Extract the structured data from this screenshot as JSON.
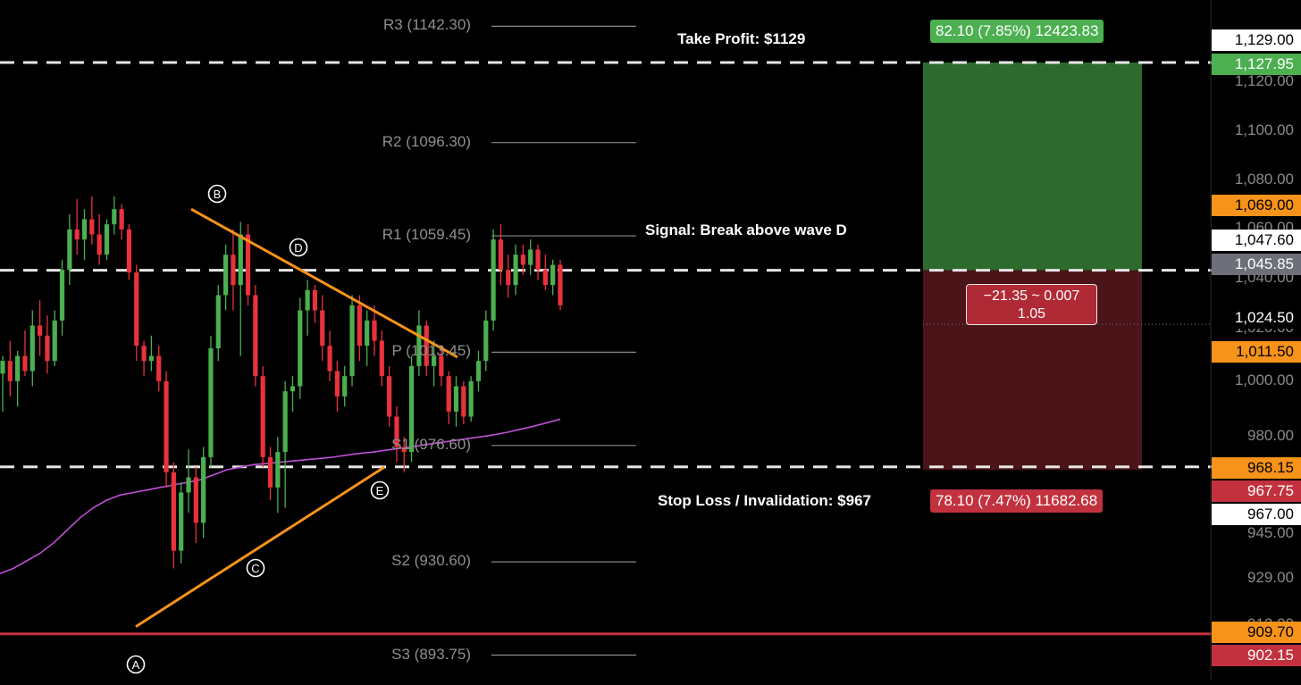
{
  "annotations": {
    "take_profit": "Take Profit: $1129",
    "signal": "Signal: Break above wave D",
    "stop_loss": "Stop Loss / Invalidation: $967"
  },
  "position_tool": {
    "profit_label": "82.10 (7.85%) 12423.83",
    "loss_label": "78.10 (7.47%) 11682.68",
    "measure_line1": "−21.35 ~ 0.007",
    "measure_line2": "1.05",
    "profit_color": "#2d6a2d",
    "loss_color": "#4a1418",
    "profit_pill_color": "#4caf50",
    "loss_pill_color": "#c1323e"
  },
  "pivot_points": [
    {
      "label": "R3 (1142.30)",
      "value": 1142.3
    },
    {
      "label": "R2 (1096.30)",
      "value": 1096.3
    },
    {
      "label": "R1 (1059.45)",
      "value": 1059.45
    },
    {
      "label": "P (1013.45)",
      "value": 1013.45
    },
    {
      "label": "S1 (976.60)",
      "value": 976.6
    },
    {
      "label": "S2 (930.60)",
      "value": 930.6
    },
    {
      "label": "S3 (893.75)",
      "value": 893.75
    }
  ],
  "wave_labels": [
    "A",
    "B",
    "C",
    "D",
    "E"
  ],
  "price_axis": {
    "ticks": [
      "1,120.00",
      "1,100.00",
      "1,080.00",
      "1,060.00",
      "1,040.00",
      "1,020.00",
      "1,000.00",
      "980.00",
      "945.00",
      "929.00",
      "912.00"
    ],
    "badges": [
      {
        "text": "1,129.00",
        "bg": "#ffffff",
        "fg": "#000000"
      },
      {
        "text": "1,127.95",
        "bg": "#4caf50",
        "fg": "#ffffff"
      },
      {
        "text": "1,069.00",
        "bg": "#f7931a",
        "fg": "#000000"
      },
      {
        "text": "1,047.60",
        "bg": "#ffffff",
        "fg": "#000000"
      },
      {
        "text": "1,045.85",
        "bg": "#6e7079",
        "fg": "#ffffff"
      },
      {
        "text": "1,024.50",
        "bg": "#000000",
        "fg": "#ffffff"
      },
      {
        "text": "1,011.50",
        "bg": "#f7931a",
        "fg": "#000000"
      },
      {
        "text": "968.15",
        "bg": "#f7931a",
        "fg": "#000000"
      },
      {
        "text": "967.75",
        "bg": "#c1323e",
        "fg": "#ffffff"
      },
      {
        "text": "967.00",
        "bg": "#ffffff",
        "fg": "#000000"
      },
      {
        "text": "909.70",
        "bg": "#f7931a",
        "fg": "#000000"
      },
      {
        "text": "902.15",
        "bg": "#c1323e",
        "fg": "#ffffff"
      }
    ]
  },
  "colors": {
    "up": "#4caf50",
    "down": "#e8323c",
    "triangle": "#f7931a",
    "moving_average": "#c04fd6",
    "support_line": "#c1323e"
  },
  "chart_data": {
    "type": "candlestick",
    "title": "",
    "xlabel": "",
    "ylabel": "",
    "ylim": [
      892,
      1142
    ],
    "grid": false,
    "horizontal_levels": {
      "take_profit": 1129.0,
      "entry": 1045.85,
      "stop_loss": 967.0,
      "support": 902.15
    },
    "candles": [
      {
        "o": 1005,
        "h": 1012,
        "l": 990,
        "c": 1010
      },
      {
        "o": 1010,
        "h": 1018,
        "l": 996,
        "c": 1002
      },
      {
        "o": 1002,
        "h": 1014,
        "l": 992,
        "c": 1012
      },
      {
        "o": 1012,
        "h": 1022,
        "l": 1004,
        "c": 1006
      },
      {
        "o": 1006,
        "h": 1030,
        "l": 1000,
        "c": 1024
      },
      {
        "o": 1024,
        "h": 1034,
        "l": 1012,
        "c": 1020
      },
      {
        "o": 1020,
        "h": 1028,
        "l": 1005,
        "c": 1010
      },
      {
        "o": 1010,
        "h": 1030,
        "l": 1008,
        "c": 1026
      },
      {
        "o": 1026,
        "h": 1050,
        "l": 1020,
        "c": 1046
      },
      {
        "o": 1046,
        "h": 1068,
        "l": 1040,
        "c": 1062
      },
      {
        "o": 1062,
        "h": 1074,
        "l": 1052,
        "c": 1058
      },
      {
        "o": 1058,
        "h": 1070,
        "l": 1050,
        "c": 1066
      },
      {
        "o": 1066,
        "h": 1075,
        "l": 1056,
        "c": 1060
      },
      {
        "o": 1060,
        "h": 1068,
        "l": 1048,
        "c": 1052
      },
      {
        "o": 1052,
        "h": 1066,
        "l": 1050,
        "c": 1064
      },
      {
        "o": 1064,
        "h": 1075,
        "l": 1060,
        "c": 1070
      },
      {
        "o": 1070,
        "h": 1072,
        "l": 1058,
        "c": 1062
      },
      {
        "o": 1062,
        "h": 1064,
        "l": 1042,
        "c": 1045
      },
      {
        "o": 1045,
        "h": 1048,
        "l": 1010,
        "c": 1016
      },
      {
        "o": 1016,
        "h": 1018,
        "l": 1004,
        "c": 1010
      },
      {
        "o": 1010,
        "h": 1020,
        "l": 1006,
        "c": 1012
      },
      {
        "o": 1012,
        "h": 1016,
        "l": 998,
        "c": 1002
      },
      {
        "o": 1002,
        "h": 1006,
        "l": 960,
        "c": 966
      },
      {
        "o": 966,
        "h": 970,
        "l": 928,
        "c": 935
      },
      {
        "o": 935,
        "h": 962,
        "l": 930,
        "c": 958
      },
      {
        "o": 958,
        "h": 975,
        "l": 950,
        "c": 964
      },
      {
        "o": 964,
        "h": 968,
        "l": 938,
        "c": 946
      },
      {
        "o": 946,
        "h": 976,
        "l": 940,
        "c": 972
      },
      {
        "o": 972,
        "h": 1020,
        "l": 968,
        "c": 1015
      },
      {
        "o": 1015,
        "h": 1040,
        "l": 1010,
        "c": 1036
      },
      {
        "o": 1036,
        "h": 1056,
        "l": 1030,
        "c": 1052
      },
      {
        "o": 1052,
        "h": 1062,
        "l": 1030,
        "c": 1040
      },
      {
        "o": 1040,
        "h": 1065,
        "l": 1012,
        "c": 1060
      },
      {
        "o": 1060,
        "h": 1064,
        "l": 1032,
        "c": 1036
      },
      {
        "o": 1036,
        "h": 1040,
        "l": 1000,
        "c": 1004
      },
      {
        "o": 1004,
        "h": 1008,
        "l": 968,
        "c": 972
      },
      {
        "o": 972,
        "h": 976,
        "l": 955,
        "c": 960
      },
      {
        "o": 960,
        "h": 980,
        "l": 950,
        "c": 974
      },
      {
        "o": 974,
        "h": 1002,
        "l": 952,
        "c": 998
      },
      {
        "o": 998,
        "h": 1004,
        "l": 990,
        "c": 1000
      },
      {
        "o": 1000,
        "h": 1035,
        "l": 995,
        "c": 1030
      },
      {
        "o": 1030,
        "h": 1042,
        "l": 1020,
        "c": 1038
      },
      {
        "o": 1038,
        "h": 1040,
        "l": 1025,
        "c": 1030
      },
      {
        "o": 1030,
        "h": 1036,
        "l": 1010,
        "c": 1016
      },
      {
        "o": 1016,
        "h": 1022,
        "l": 1002,
        "c": 1006
      },
      {
        "o": 1006,
        "h": 1010,
        "l": 990,
        "c": 996
      },
      {
        "o": 996,
        "h": 1008,
        "l": 992,
        "c": 1004
      },
      {
        "o": 1004,
        "h": 1036,
        "l": 1000,
        "c": 1032
      },
      {
        "o": 1032,
        "h": 1036,
        "l": 1010,
        "c": 1016
      },
      {
        "o": 1016,
        "h": 1030,
        "l": 1008,
        "c": 1026
      },
      {
        "o": 1026,
        "h": 1032,
        "l": 1012,
        "c": 1018
      },
      {
        "o": 1018,
        "h": 1022,
        "l": 1000,
        "c": 1004
      },
      {
        "o": 1004,
        "h": 1008,
        "l": 984,
        "c": 988
      },
      {
        "o": 988,
        "h": 992,
        "l": 970,
        "c": 976
      },
      {
        "o": 976,
        "h": 980,
        "l": 966,
        "c": 974
      },
      {
        "o": 974,
        "h": 1012,
        "l": 970,
        "c": 1008
      },
      {
        "o": 1008,
        "h": 1030,
        "l": 1004,
        "c": 1024
      },
      {
        "o": 1024,
        "h": 1026,
        "l": 1004,
        "c": 1008
      },
      {
        "o": 1008,
        "h": 1018,
        "l": 1000,
        "c": 1012
      },
      {
        "o": 1012,
        "h": 1016,
        "l": 1000,
        "c": 1004
      },
      {
        "o": 1004,
        "h": 1006,
        "l": 985,
        "c": 990
      },
      {
        "o": 990,
        "h": 1004,
        "l": 984,
        "c": 1000
      },
      {
        "o": 1000,
        "h": 1002,
        "l": 985,
        "c": 988
      },
      {
        "o": 988,
        "h": 1004,
        "l": 986,
        "c": 1002
      },
      {
        "o": 1002,
        "h": 1014,
        "l": 998,
        "c": 1010
      },
      {
        "o": 1010,
        "h": 1030,
        "l": 1006,
        "c": 1026
      },
      {
        "o": 1026,
        "h": 1062,
        "l": 1022,
        "c": 1058
      },
      {
        "o": 1058,
        "h": 1064,
        "l": 1040,
        "c": 1046
      },
      {
        "o": 1046,
        "h": 1052,
        "l": 1035,
        "c": 1040
      },
      {
        "o": 1040,
        "h": 1056,
        "l": 1036,
        "c": 1052
      },
      {
        "o": 1052,
        "h": 1056,
        "l": 1044,
        "c": 1048
      },
      {
        "o": 1048,
        "h": 1058,
        "l": 1044,
        "c": 1054
      },
      {
        "o": 1054,
        "h": 1056,
        "l": 1042,
        "c": 1046
      },
      {
        "o": 1046,
        "h": 1052,
        "l": 1038,
        "c": 1040
      },
      {
        "o": 1040,
        "h": 1050,
        "l": 1036,
        "c": 1048
      },
      {
        "o": 1048,
        "h": 1050,
        "l": 1030,
        "c": 1032
      }
    ],
    "moving_average": {
      "name": "",
      "values": [
        926,
        928,
        931,
        934,
        938,
        943,
        948,
        952,
        955,
        957,
        958,
        959,
        960,
        961,
        962,
        963,
        965,
        967,
        968,
        969,
        969.5,
        970,
        970.5,
        971,
        971.5,
        972,
        972.8,
        973.5,
        974,
        974.8,
        975.5,
        976.2,
        977,
        977.8,
        978.5,
        979.3,
        980,
        980.8,
        981.8,
        983,
        984.2,
        985.6,
        987
      ]
    },
    "triangle_points": {
      "A": 905,
      "B": 1070,
      "C": 922,
      "D": 1052,
      "E": 968
    }
  }
}
